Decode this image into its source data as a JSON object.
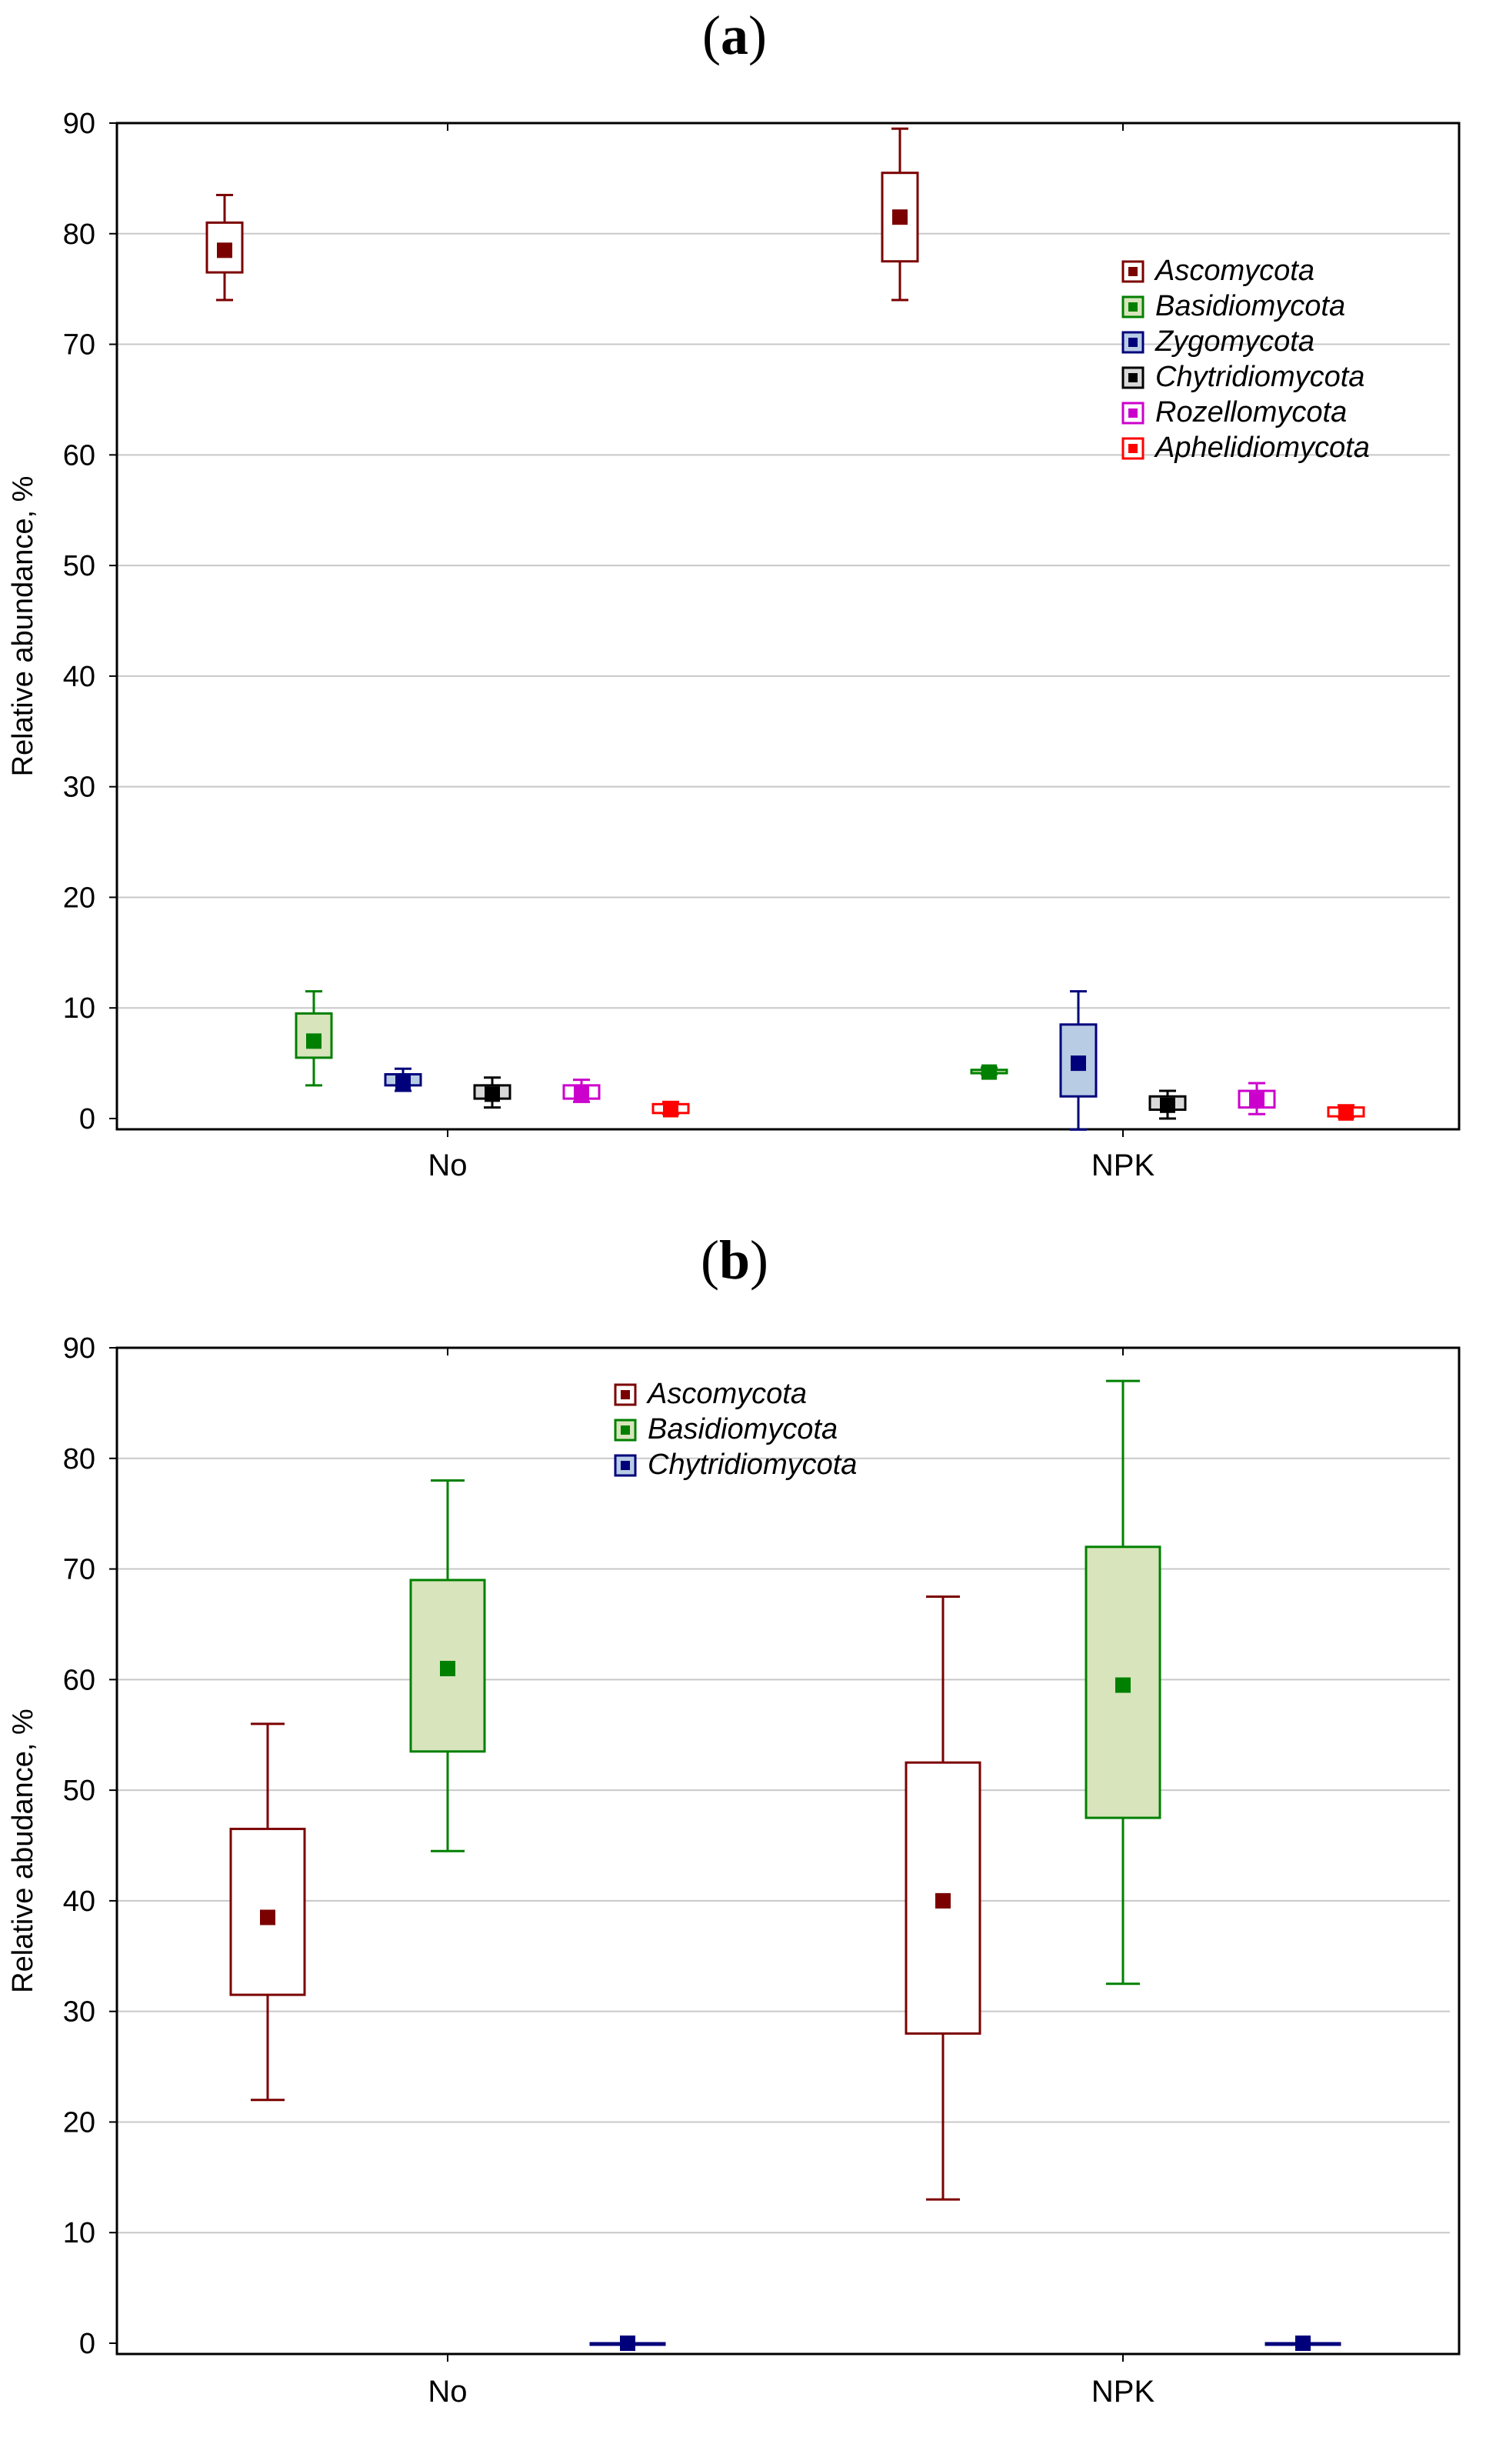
{
  "chart_data": [
    {
      "type": "boxplot",
      "panel_label": "a",
      "ylabel": "Relative abundance, %",
      "ylim": [
        0,
        90
      ],
      "yticks": [
        0,
        10,
        20,
        30,
        40,
        50,
        60,
        70,
        80,
        90
      ],
      "grid": true,
      "legend_position": "top-right",
      "categories": [
        "No",
        "NPK"
      ],
      "series": [
        {
          "name": "Ascomycota",
          "color": "#7b0000",
          "fill": "#ffffff",
          "boxes": [
            {
              "median": 78.5,
              "q1": 76.5,
              "q3": 81,
              "min": 74,
              "max": 83.5
            },
            {
              "median": 81.5,
              "q1": 77.5,
              "q3": 85.5,
              "min": 74,
              "max": 89.5
            }
          ]
        },
        {
          "name": "Basidiomycota",
          "color": "#008000",
          "fill": "#d8e4bc",
          "boxes": [
            {
              "median": 7,
              "q1": 5.5,
              "q3": 9.5,
              "min": 3,
              "max": 11.5
            },
            {
              "median": 4.2,
              "q1": 4.1,
              "q3": 4.4,
              "min": 4,
              "max": 4.6
            }
          ]
        },
        {
          "name": "Zygomycota",
          "color": "#00007b",
          "fill": "#b8cce4",
          "boxes": [
            {
              "median": 3.2,
              "q1": 3,
              "q3": 4,
              "min": 2.5,
              "max": 4.5
            },
            {
              "median": 5,
              "q1": 2,
              "q3": 8.5,
              "min": -1,
              "max": 11.5
            }
          ]
        },
        {
          "name": "Chytridiomycota",
          "color": "#000000",
          "fill": "#d9d9d9",
          "boxes": [
            {
              "median": 2.2,
              "q1": 1.8,
              "q3": 3,
              "min": 1,
              "max": 3.7
            },
            {
              "median": 1.2,
              "q1": 0.8,
              "q3": 2,
              "min": 0,
              "max": 2.5
            }
          ]
        },
        {
          "name": "Rozellomycota",
          "color": "#cc00cc",
          "fill": "#ffffff",
          "boxes": [
            {
              "median": 2.3,
              "q1": 1.8,
              "q3": 3,
              "min": 1.5,
              "max": 3.5
            },
            {
              "median": 1.7,
              "q1": 1,
              "q3": 2.5,
              "min": 0.4,
              "max": 3.2
            }
          ]
        },
        {
          "name": "Aphelidiomycota",
          "color": "#ff0000",
          "fill": "#ffffff",
          "boxes": [
            {
              "median": 0.8,
              "q1": 0.5,
              "q3": 1.3,
              "min": 0.4,
              "max": 1.5
            },
            {
              "median": 0.5,
              "q1": 0.2,
              "q3": 1,
              "min": 0.1,
              "max": 1.2
            }
          ]
        }
      ]
    },
    {
      "type": "boxplot",
      "panel_label": "b",
      "ylabel": "Relative abudance, %",
      "ylim": [
        0,
        90
      ],
      "yticks": [
        0,
        10,
        20,
        30,
        40,
        50,
        60,
        70,
        80,
        90
      ],
      "grid": true,
      "legend_position": "top-center",
      "categories": [
        "No",
        "NPK"
      ],
      "series": [
        {
          "name": "Ascomycota",
          "color": "#7b0000",
          "fill": "#ffffff",
          "boxes": [
            {
              "median": 38.5,
              "q1": 31.5,
              "q3": 46.5,
              "min": 22,
              "max": 56
            },
            {
              "median": 40,
              "q1": 28,
              "q3": 52.5,
              "min": 13,
              "max": 67.5
            }
          ]
        },
        {
          "name": "Basidiomycota",
          "color": "#008000",
          "fill": "#d8e4bc",
          "boxes": [
            {
              "median": 61,
              "q1": 53.5,
              "q3": 69,
              "min": 44.5,
              "max": 78
            },
            {
              "median": 59.5,
              "q1": 47.5,
              "q3": 72,
              "min": 32.5,
              "max": 87
            }
          ]
        },
        {
          "name": "Chytridiomycota",
          "color": "#00007b",
          "fill": "#b8cce4",
          "boxes": [
            {
              "median": 0,
              "q1": 0,
              "q3": 0,
              "min": 0,
              "max": 0
            },
            {
              "median": 0,
              "q1": 0,
              "q3": 0,
              "min": 0,
              "max": 0
            }
          ]
        }
      ]
    }
  ]
}
